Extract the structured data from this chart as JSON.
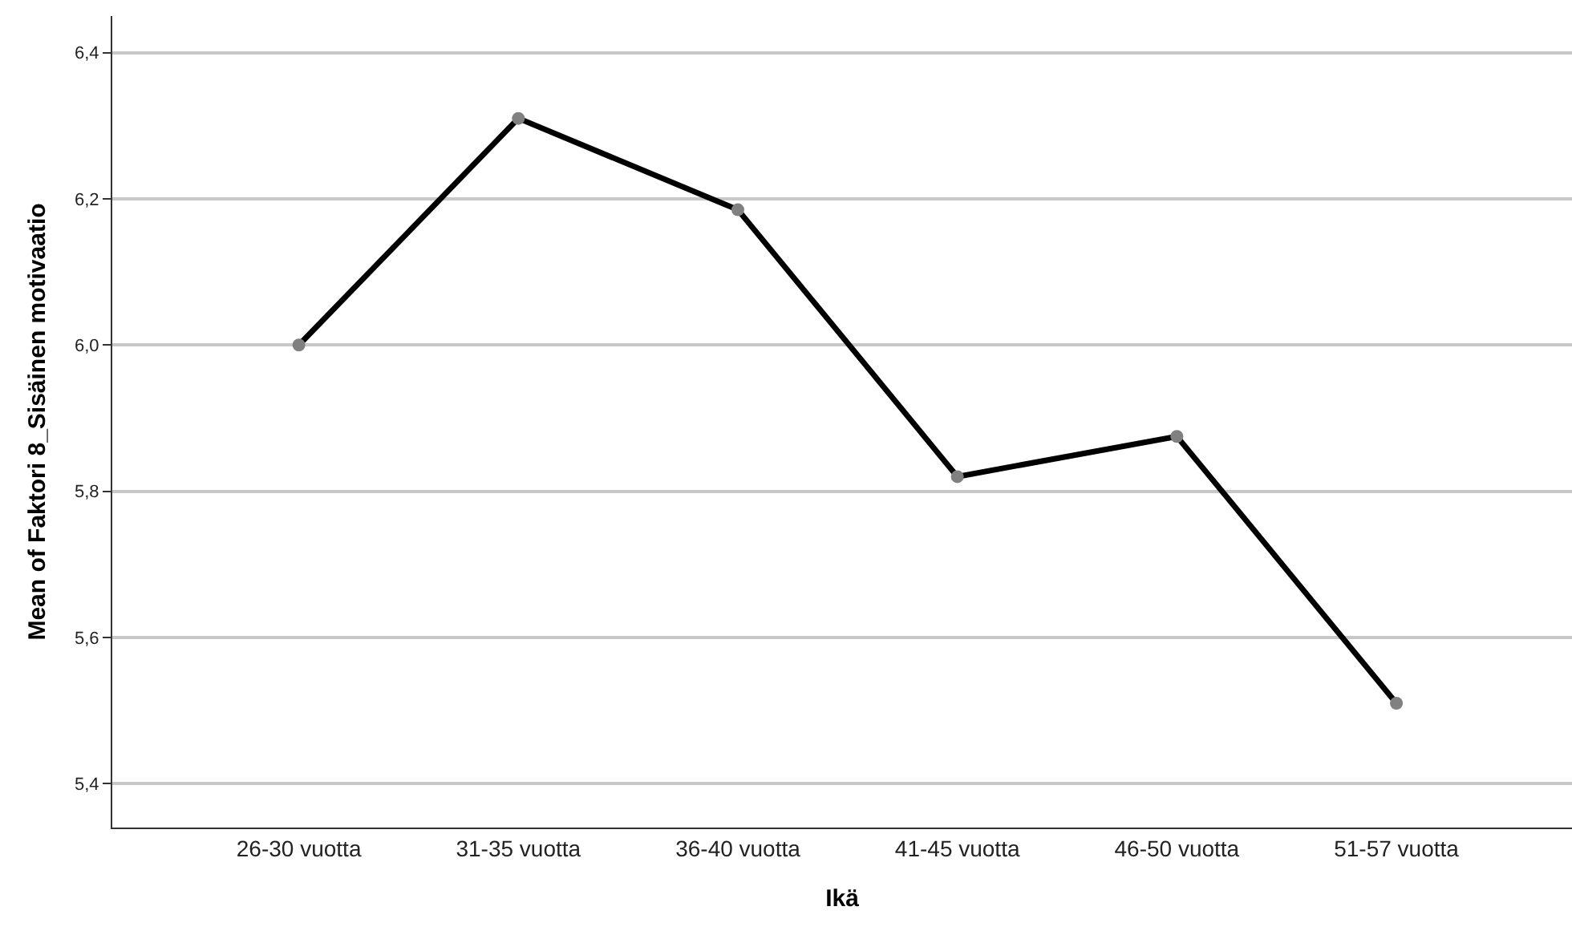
{
  "chart_data": {
    "type": "line",
    "xlabel": "Ikä",
    "ylabel": "Mean of Faktori 8_Sisäinen motivaatio",
    "categories": [
      "26-30 vuotta",
      "31-35 vuotta",
      "36-40 vuotta",
      "41-45 vuotta",
      "46-50 vuotta",
      "51-57 vuotta"
    ],
    "series": [
      {
        "color": "#000000",
        "values": [
          6.0,
          6.31,
          6.185,
          5.82,
          5.875,
          5.51
        ]
      }
    ],
    "ylim": [
      5.34,
      6.45
    ],
    "yticks": [
      {
        "value": 5.4,
        "label": "5,4"
      },
      {
        "value": 5.6,
        "label": "5,6"
      },
      {
        "value": 5.8,
        "label": "5,8"
      },
      {
        "value": 6.0,
        "label": "6,0"
      },
      {
        "value": 6.2,
        "label": "6,2"
      },
      {
        "value": 6.4,
        "label": "6,4"
      }
    ],
    "grid": "y",
    "legend": false,
    "marker": "circle",
    "line_style": "solid"
  }
}
